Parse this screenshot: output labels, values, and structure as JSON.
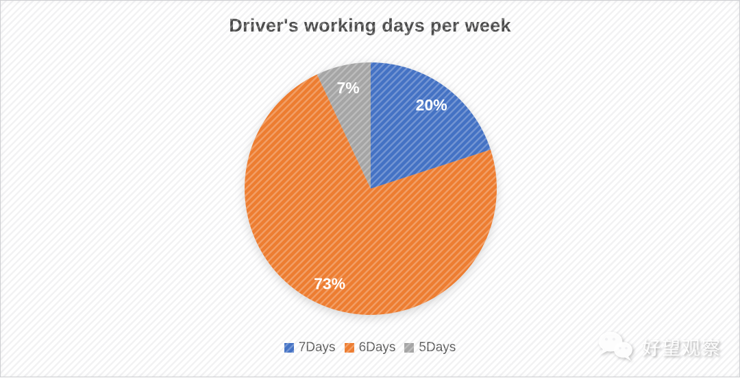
{
  "chart_data": {
    "type": "pie",
    "title": "Driver's working days per week",
    "categories": [
      "7Days",
      "6Days",
      "5Days"
    ],
    "values": [
      20,
      73,
      7
    ],
    "unit": "%",
    "slices": [
      {
        "label": "7Days",
        "value": 20,
        "display": "20%",
        "color": "#4472C4"
      },
      {
        "label": "6Days",
        "value": 73,
        "display": "73%",
        "color": "#ED7D31"
      },
      {
        "label": "5Days",
        "value": 7,
        "display": "7%",
        "color": "#A5A5A5"
      }
    ],
    "start_angle_deg": 0,
    "direction": "clockwise",
    "legend_position": "bottom",
    "data_label_color": "#FFFFFF"
  },
  "watermark": {
    "icon": "wechat-icon",
    "text": "好望观察"
  },
  "colors": {
    "title_text": "#4A4A4A",
    "legend_text": "#595959",
    "background": "#FFFFFF",
    "background_stripe": "#EDEDEF"
  }
}
